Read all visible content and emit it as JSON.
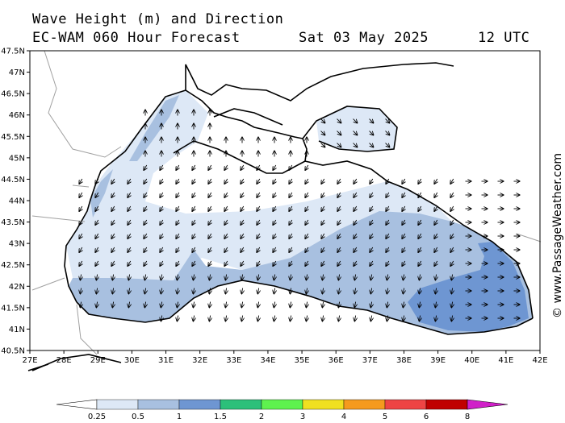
{
  "header": {
    "line1": "Wave Height (m) and Direction",
    "line2_left": "EC-WAM 060 Hour Forecast",
    "line2_date": "Sat 03 May 2025",
    "line2_time": "12 UTC"
  },
  "credit": "© www.PassageWeather.com",
  "axes": {
    "lat_labels": [
      "47.5N",
      "47N",
      "46.5N",
      "46N",
      "45.5N",
      "45N",
      "44.5N",
      "44N",
      "43.5N",
      "43N",
      "42.5N",
      "42N",
      "41.5N",
      "41N",
      "40.5N"
    ],
    "lon_labels": [
      "27E",
      "28E",
      "29E",
      "30E",
      "31E",
      "32E",
      "33E",
      "34E",
      "35E",
      "36E",
      "37E",
      "38E",
      "39E",
      "40E",
      "41E",
      "42E"
    ]
  },
  "legend": {
    "labels": [
      "0.25",
      "0.5",
      "1",
      "1.5",
      "2",
      "3",
      "4",
      "5",
      "6",
      "8"
    ],
    "colors": [
      "#dde8f6",
      "#a8c0e0",
      "#6e96d2",
      "#2cc07a",
      "#5ef24e",
      "#f0e020",
      "#f59a1e",
      "#ee4444",
      "#c00000",
      "#d020c8"
    ],
    "unit": "m"
  },
  "map": {
    "sea_base_color": "#ffffff",
    "land_color": "#ffffff",
    "coast_color": "#000000",
    "border_color": "#a0a0a0",
    "arrow_color": "#000000",
    "wave_bands": [
      "0.25",
      "0.5",
      "1"
    ]
  }
}
